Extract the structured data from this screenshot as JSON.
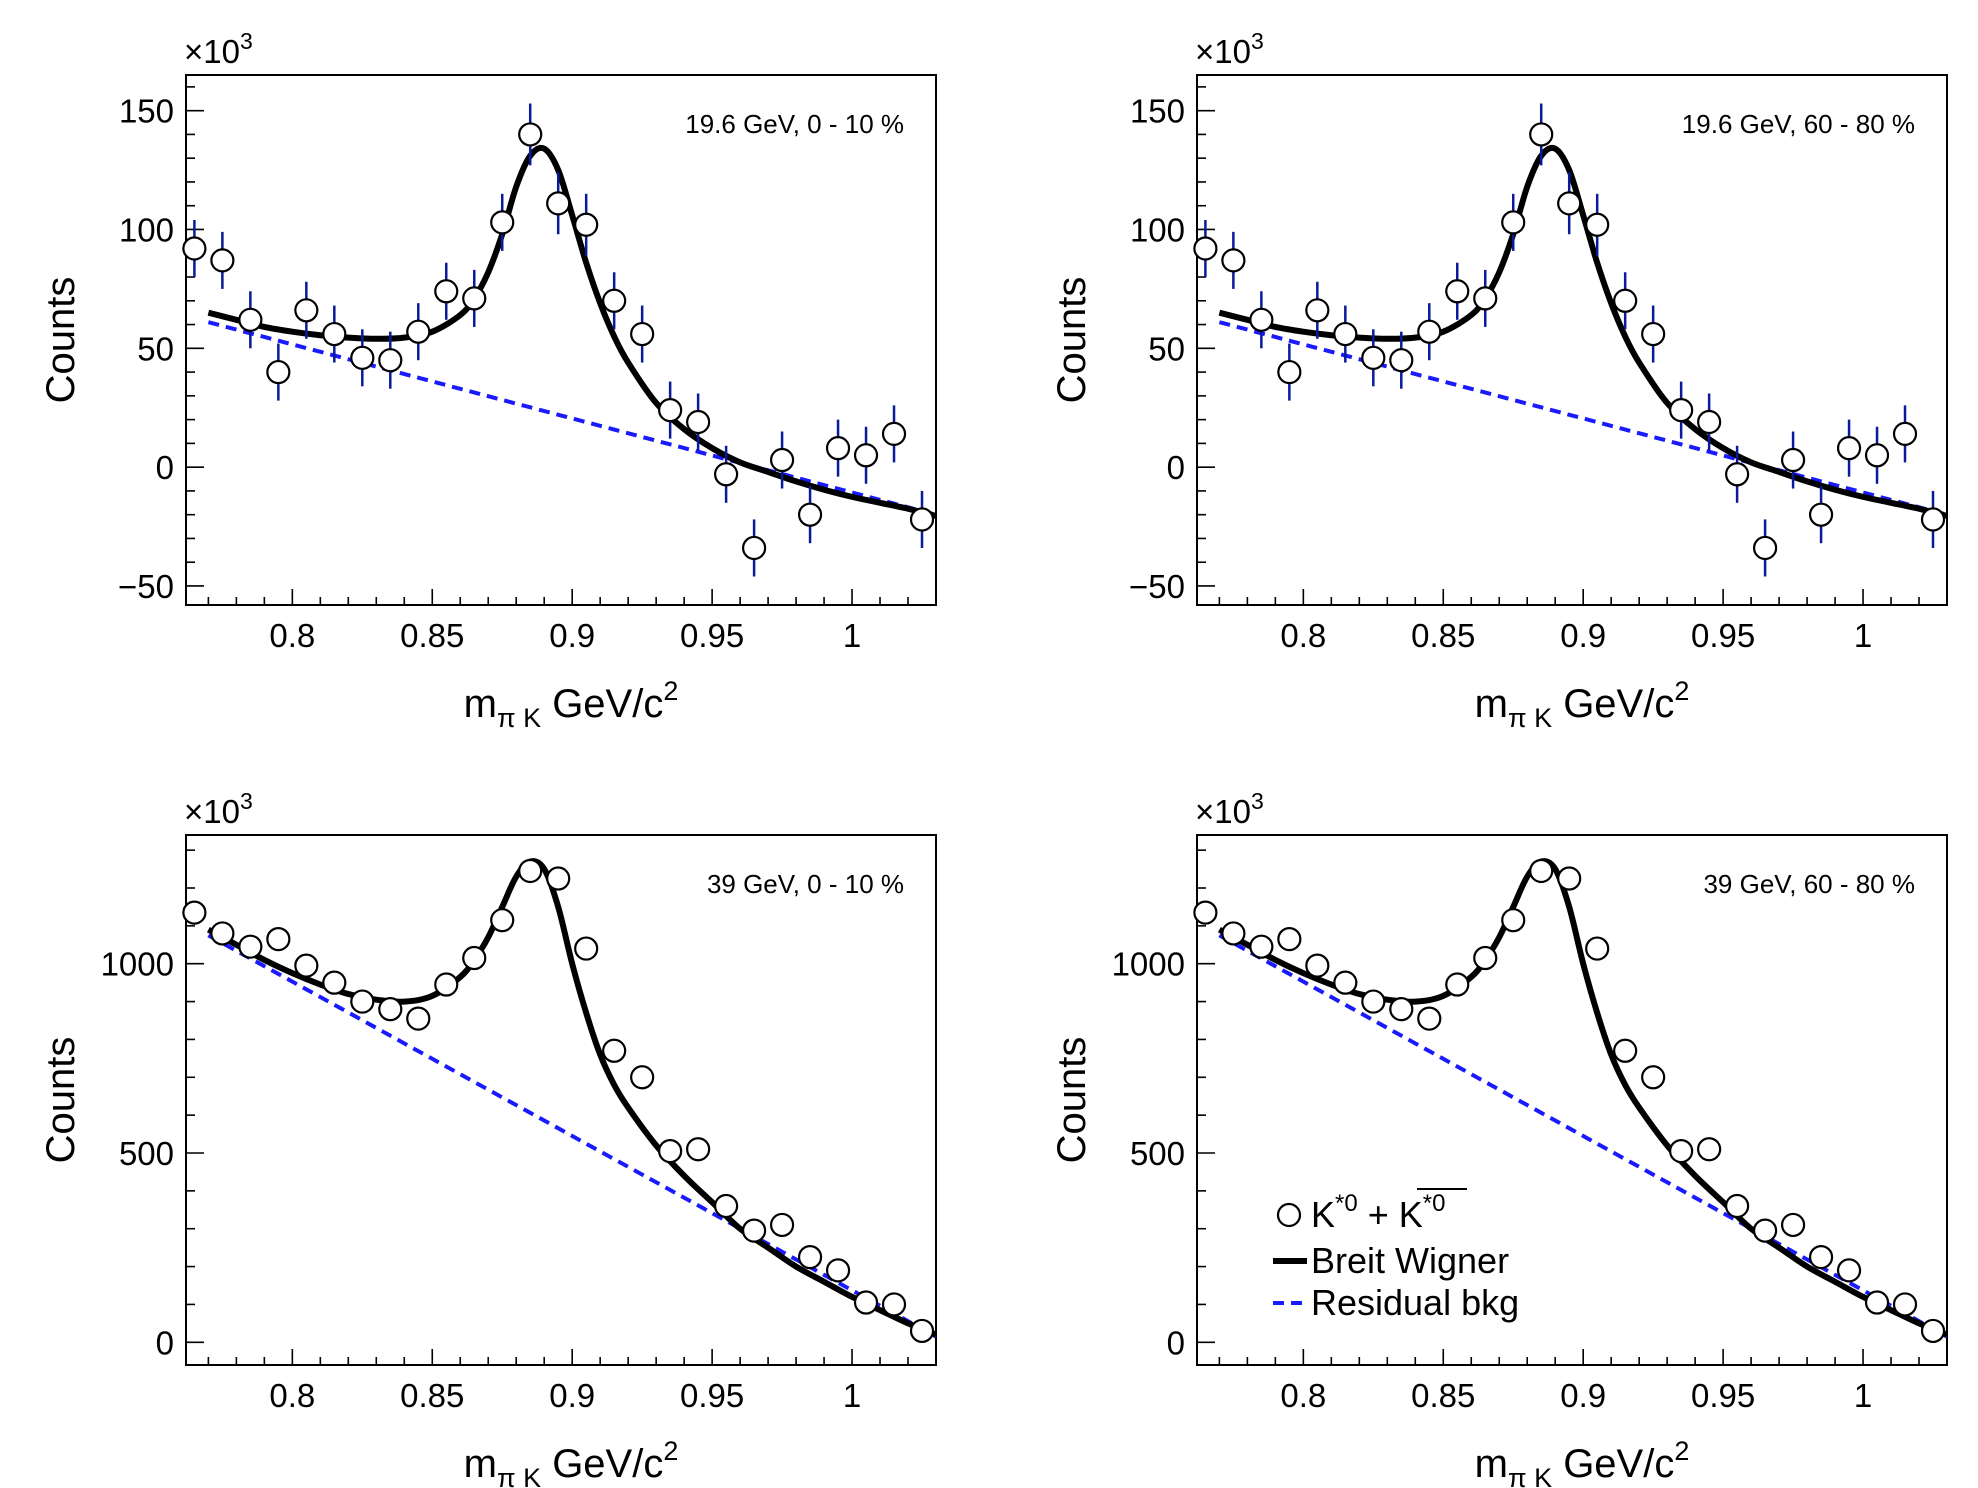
{
  "figure": {
    "legend": {
      "entries": [
        {
          "kind": "points",
          "label_main": "K",
          "label_sup": "*0",
          "label_join": " + ",
          "label_bar": "K",
          "label_bar_sup": "*0"
        },
        {
          "kind": "fit",
          "label": "Breit Wigner"
        },
        {
          "kind": "background",
          "label": "Residual bkg"
        }
      ]
    },
    "colors": {
      "points": "#000000",
      "error_bars": "#0a1a99",
      "fit": "#000000",
      "background": "#1a1aff",
      "frame": "#000000"
    }
  },
  "chart_data": [
    {
      "type": "scatter",
      "annotation": "19.6 GeV, 0 - 10 %",
      "xlabel": "m",
      "xlabel_sub": "π K",
      "xlabel_units": "GeV/c",
      "xlabel_sup": "2",
      "ylabel": "Counts",
      "y_multiplier": "×10",
      "y_multiplier_exp": "3",
      "xlim": [
        0.762,
        1.03
      ],
      "ylim": [
        -58,
        165
      ],
      "xticks": [
        0.8,
        0.85,
        0.9,
        0.95,
        1.0
      ],
      "xtick_labels": [
        "0.8",
        "0.85",
        "0.9",
        "0.95",
        "1"
      ],
      "yticks": [
        -50,
        0,
        50,
        100,
        150
      ],
      "ytick_labels": [
        "−50",
        "0",
        "50",
        "100",
        "150"
      ],
      "series": [
        {
          "name": "K*0 + anti-K*0",
          "kind": "points",
          "x": [
            0.765,
            0.775,
            0.785,
            0.795,
            0.805,
            0.815,
            0.825,
            0.835,
            0.845,
            0.855,
            0.865,
            0.875,
            0.885,
            0.895,
            0.905,
            0.915,
            0.925,
            0.935,
            0.945,
            0.955,
            0.965,
            0.975,
            0.985,
            0.995,
            1.005,
            1.015,
            1.025
          ],
          "y": [
            92,
            87,
            62,
            40,
            66,
            56,
            46,
            45,
            57,
            74,
            71,
            103,
            140,
            111,
            102,
            70,
            56,
            24,
            19,
            -3,
            -34,
            3,
            -20,
            8,
            5,
            14,
            -22
          ],
          "yerr": [
            12,
            12,
            12,
            12,
            12,
            12,
            12,
            12,
            12,
            12,
            12,
            12,
            13,
            13,
            13,
            12,
            12,
            12,
            12,
            12,
            12,
            12,
            12,
            12,
            12,
            12,
            12
          ]
        },
        {
          "name": "Breit Wigner",
          "kind": "fit",
          "x": [
            0.77,
            0.78,
            0.79,
            0.8,
            0.81,
            0.82,
            0.83,
            0.84,
            0.85,
            0.86,
            0.865,
            0.87,
            0.875,
            0.88,
            0.885,
            0.89,
            0.895,
            0.9,
            0.905,
            0.91,
            0.915,
            0.92,
            0.93,
            0.94,
            0.95,
            0.96,
            0.97,
            0.98,
            0.99,
            1.0,
            1.01,
            1.02,
            1.03
          ],
          "y": [
            65,
            62,
            59,
            57,
            55.5,
            54.5,
            54,
            54.5,
            57,
            64,
            71,
            82,
            98,
            118,
            131,
            134,
            125,
            106,
            86,
            69,
            55,
            44,
            27,
            16,
            8,
            2,
            -2,
            -6,
            -9.5,
            -12.5,
            -15,
            -17.5,
            -20.5
          ]
        },
        {
          "name": "Residual bkg",
          "kind": "background",
          "x": [
            0.77,
            1.03
          ],
          "y": [
            61,
            -20
          ]
        }
      ]
    },
    {
      "type": "scatter",
      "annotation": "19.6 GeV, 60 - 80 %",
      "xlabel": "m",
      "xlabel_sub": "π K",
      "xlabel_units": "GeV/c",
      "xlabel_sup": "2",
      "ylabel": "Counts",
      "y_multiplier": "×10",
      "y_multiplier_exp": "3",
      "xlim": [
        0.762,
        1.03
      ],
      "ylim": [
        -58,
        165
      ],
      "xticks": [
        0.8,
        0.85,
        0.9,
        0.95,
        1.0
      ],
      "xtick_labels": [
        "0.8",
        "0.85",
        "0.9",
        "0.95",
        "1"
      ],
      "yticks": [
        -50,
        0,
        50,
        100,
        150
      ],
      "ytick_labels": [
        "−50",
        "0",
        "50",
        "100",
        "150"
      ],
      "series": [
        {
          "name": "K*0 + anti-K*0",
          "kind": "points",
          "x": [
            0.765,
            0.775,
            0.785,
            0.795,
            0.805,
            0.815,
            0.825,
            0.835,
            0.845,
            0.855,
            0.865,
            0.875,
            0.885,
            0.895,
            0.905,
            0.915,
            0.925,
            0.935,
            0.945,
            0.955,
            0.965,
            0.975,
            0.985,
            0.995,
            1.005,
            1.015,
            1.025
          ],
          "y": [
            92,
            87,
            62,
            40,
            66,
            56,
            46,
            45,
            57,
            74,
            71,
            103,
            140,
            111,
            102,
            70,
            56,
            24,
            19,
            -3,
            -34,
            3,
            -20,
            8,
            5,
            14,
            -22
          ],
          "yerr": [
            12,
            12,
            12,
            12,
            12,
            12,
            12,
            12,
            12,
            12,
            12,
            12,
            13,
            13,
            13,
            12,
            12,
            12,
            12,
            12,
            12,
            12,
            12,
            12,
            12,
            12,
            12
          ]
        },
        {
          "name": "Breit Wigner",
          "kind": "fit",
          "x": [
            0.77,
            0.78,
            0.79,
            0.8,
            0.81,
            0.82,
            0.83,
            0.84,
            0.85,
            0.86,
            0.865,
            0.87,
            0.875,
            0.88,
            0.885,
            0.89,
            0.895,
            0.9,
            0.905,
            0.91,
            0.915,
            0.92,
            0.93,
            0.94,
            0.95,
            0.96,
            0.97,
            0.98,
            0.99,
            1.0,
            1.01,
            1.02,
            1.03
          ],
          "y": [
            65,
            62,
            59,
            57,
            55.5,
            54.5,
            54,
            54.5,
            57,
            64,
            71,
            82,
            98,
            118,
            131,
            134,
            125,
            106,
            86,
            69,
            55,
            44,
            27,
            16,
            8,
            2,
            -2,
            -6,
            -9.5,
            -12.5,
            -15,
            -17.5,
            -20.5
          ]
        },
        {
          "name": "Residual bkg",
          "kind": "background",
          "x": [
            0.77,
            1.03
          ],
          "y": [
            61,
            -20
          ]
        }
      ]
    },
    {
      "type": "scatter",
      "annotation": "39 GeV, 0 - 10 %",
      "xlabel": "m",
      "xlabel_sub": "π K",
      "xlabel_units": "GeV/c",
      "xlabel_sup": "2",
      "ylabel": "Counts",
      "y_multiplier": "×10",
      "y_multiplier_exp": "3",
      "xlim": [
        0.762,
        1.03
      ],
      "ylim": [
        -60,
        1340
      ],
      "xticks": [
        0.8,
        0.85,
        0.9,
        0.95,
        1.0
      ],
      "xtick_labels": [
        "0.8",
        "0.85",
        "0.9",
        "0.95",
        "1"
      ],
      "yticks": [
        0,
        500,
        1000
      ],
      "ytick_labels": [
        "0",
        "500",
        "1000"
      ],
      "series": [
        {
          "name": "K*0 + anti-K*0",
          "kind": "points",
          "x": [
            0.765,
            0.775,
            0.785,
            0.795,
            0.805,
            0.815,
            0.825,
            0.835,
            0.845,
            0.855,
            0.865,
            0.875,
            0.885,
            0.895,
            0.905,
            0.915,
            0.925,
            0.935,
            0.945,
            0.955,
            0.965,
            0.975,
            0.985,
            0.995,
            1.005,
            1.015,
            1.025
          ],
          "y": [
            1135,
            1080,
            1045,
            1065,
            995,
            950,
            900,
            880,
            855,
            945,
            1015,
            1115,
            1245,
            1225,
            1040,
            770,
            700,
            505,
            510,
            360,
            295,
            310,
            225,
            190,
            105,
            100,
            30
          ],
          "yerr": [
            0,
            0,
            0,
            0,
            0,
            0,
            0,
            0,
            0,
            0,
            0,
            0,
            0,
            0,
            0,
            0,
            0,
            0,
            0,
            0,
            0,
            0,
            0,
            0,
            0,
            0,
            0
          ]
        },
        {
          "name": "Breit Wigner",
          "kind": "fit",
          "x": [
            0.77,
            0.78,
            0.79,
            0.8,
            0.81,
            0.82,
            0.83,
            0.84,
            0.85,
            0.86,
            0.865,
            0.87,
            0.875,
            0.88,
            0.885,
            0.89,
            0.895,
            0.9,
            0.905,
            0.91,
            0.915,
            0.92,
            0.93,
            0.94,
            0.95,
            0.96,
            0.97,
            0.98,
            0.99,
            1.0,
            1.01,
            1.02,
            1.03
          ],
          "y": [
            1090,
            1050,
            1010,
            975,
            945,
            920,
            905,
            900,
            915,
            965,
            1010,
            1070,
            1150,
            1230,
            1270,
            1250,
            1150,
            1000,
            870,
            760,
            680,
            620,
            520,
            440,
            370,
            300,
            250,
            200,
            160,
            120,
            85,
            50,
            20
          ]
        },
        {
          "name": "Residual bkg",
          "kind": "background",
          "x": [
            0.77,
            1.03
          ],
          "y": [
            1075,
            15
          ]
        }
      ]
    },
    {
      "type": "scatter",
      "annotation": "39 GeV, 60 - 80 %",
      "xlabel": "m",
      "xlabel_sub": "π K",
      "xlabel_units": "GeV/c",
      "xlabel_sup": "2",
      "ylabel": "Counts",
      "y_multiplier": "×10",
      "y_multiplier_exp": "3",
      "xlim": [
        0.762,
        1.03
      ],
      "ylim": [
        -60,
        1340
      ],
      "xticks": [
        0.8,
        0.85,
        0.9,
        0.95,
        1.0
      ],
      "xtick_labels": [
        "0.8",
        "0.85",
        "0.9",
        "0.95",
        "1"
      ],
      "yticks": [
        0,
        500,
        1000
      ],
      "ytick_labels": [
        "0",
        "500",
        "1000"
      ],
      "legend": true,
      "series": [
        {
          "name": "K*0 + anti-K*0",
          "kind": "points",
          "x": [
            0.765,
            0.775,
            0.785,
            0.795,
            0.805,
            0.815,
            0.825,
            0.835,
            0.845,
            0.855,
            0.865,
            0.875,
            0.885,
            0.895,
            0.905,
            0.915,
            0.925,
            0.935,
            0.945,
            0.955,
            0.965,
            0.975,
            0.985,
            0.995,
            1.005,
            1.015,
            1.025
          ],
          "y": [
            1135,
            1080,
            1045,
            1065,
            995,
            950,
            900,
            880,
            855,
            945,
            1015,
            1115,
            1245,
            1225,
            1040,
            770,
            700,
            505,
            510,
            360,
            295,
            310,
            225,
            190,
            105,
            100,
            30
          ],
          "yerr": [
            0,
            0,
            0,
            0,
            0,
            0,
            0,
            0,
            0,
            0,
            0,
            0,
            0,
            0,
            0,
            0,
            0,
            0,
            0,
            0,
            0,
            0,
            0,
            0,
            0,
            0,
            0
          ]
        },
        {
          "name": "Breit Wigner",
          "kind": "fit",
          "x": [
            0.77,
            0.78,
            0.79,
            0.8,
            0.81,
            0.82,
            0.83,
            0.84,
            0.85,
            0.86,
            0.865,
            0.87,
            0.875,
            0.88,
            0.885,
            0.89,
            0.895,
            0.9,
            0.905,
            0.91,
            0.915,
            0.92,
            0.93,
            0.94,
            0.95,
            0.96,
            0.97,
            0.98,
            0.99,
            1.0,
            1.01,
            1.02,
            1.03
          ],
          "y": [
            1090,
            1050,
            1010,
            975,
            945,
            920,
            905,
            900,
            915,
            965,
            1010,
            1070,
            1150,
            1230,
            1270,
            1250,
            1150,
            1000,
            870,
            760,
            680,
            620,
            520,
            440,
            370,
            300,
            250,
            200,
            160,
            120,
            85,
            50,
            20
          ]
        },
        {
          "name": "Residual bkg",
          "kind": "background",
          "x": [
            0.77,
            1.03
          ],
          "y": [
            1075,
            15
          ]
        }
      ]
    }
  ]
}
